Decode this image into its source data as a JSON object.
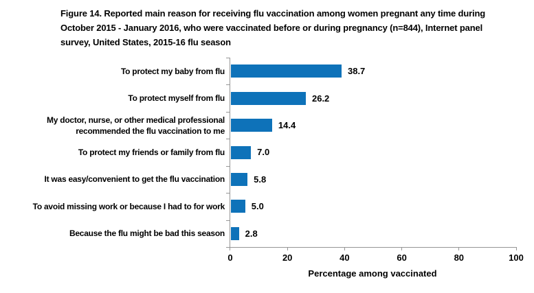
{
  "chart_data": {
    "type": "bar",
    "orientation": "horizontal",
    "title": "Figure 14. Reported main reason for receiving flu vaccination among women pregnant any time during October 2015 - January 2016, who were vaccinated before or during pregnancy (n=844), Internet panel survey, United States, 2015-16 flu season",
    "categories": [
      "To protect my baby from flu",
      "To protect myself from flu",
      "My doctor, nurse, or other medical professional recommended the flu vaccination to me",
      "To protect my friends or family from flu",
      "It was easy/convenient to get the flu vaccination",
      "To avoid missing work or because I had to for work",
      "Because the flu might be bad this season"
    ],
    "values": [
      38.7,
      26.2,
      14.4,
      7.0,
      5.8,
      5.0,
      2.8
    ],
    "value_labels": [
      "38.7",
      "26.2",
      "14.4",
      "7.0",
      "5.8",
      "5.0",
      "2.8"
    ],
    "xlabel": "Percentage among vaccinated",
    "xlim": [
      0,
      100
    ],
    "xticks": [
      0,
      20,
      40,
      60,
      80,
      100
    ],
    "xtick_labels": [
      "0",
      "20",
      "40",
      "60",
      "80",
      "100"
    ],
    "grid": false,
    "legend": "none",
    "colors": {
      "bar": "#0E72B9",
      "axis": "#959595",
      "text": "#000000",
      "background": "#FFFFFF"
    }
  }
}
